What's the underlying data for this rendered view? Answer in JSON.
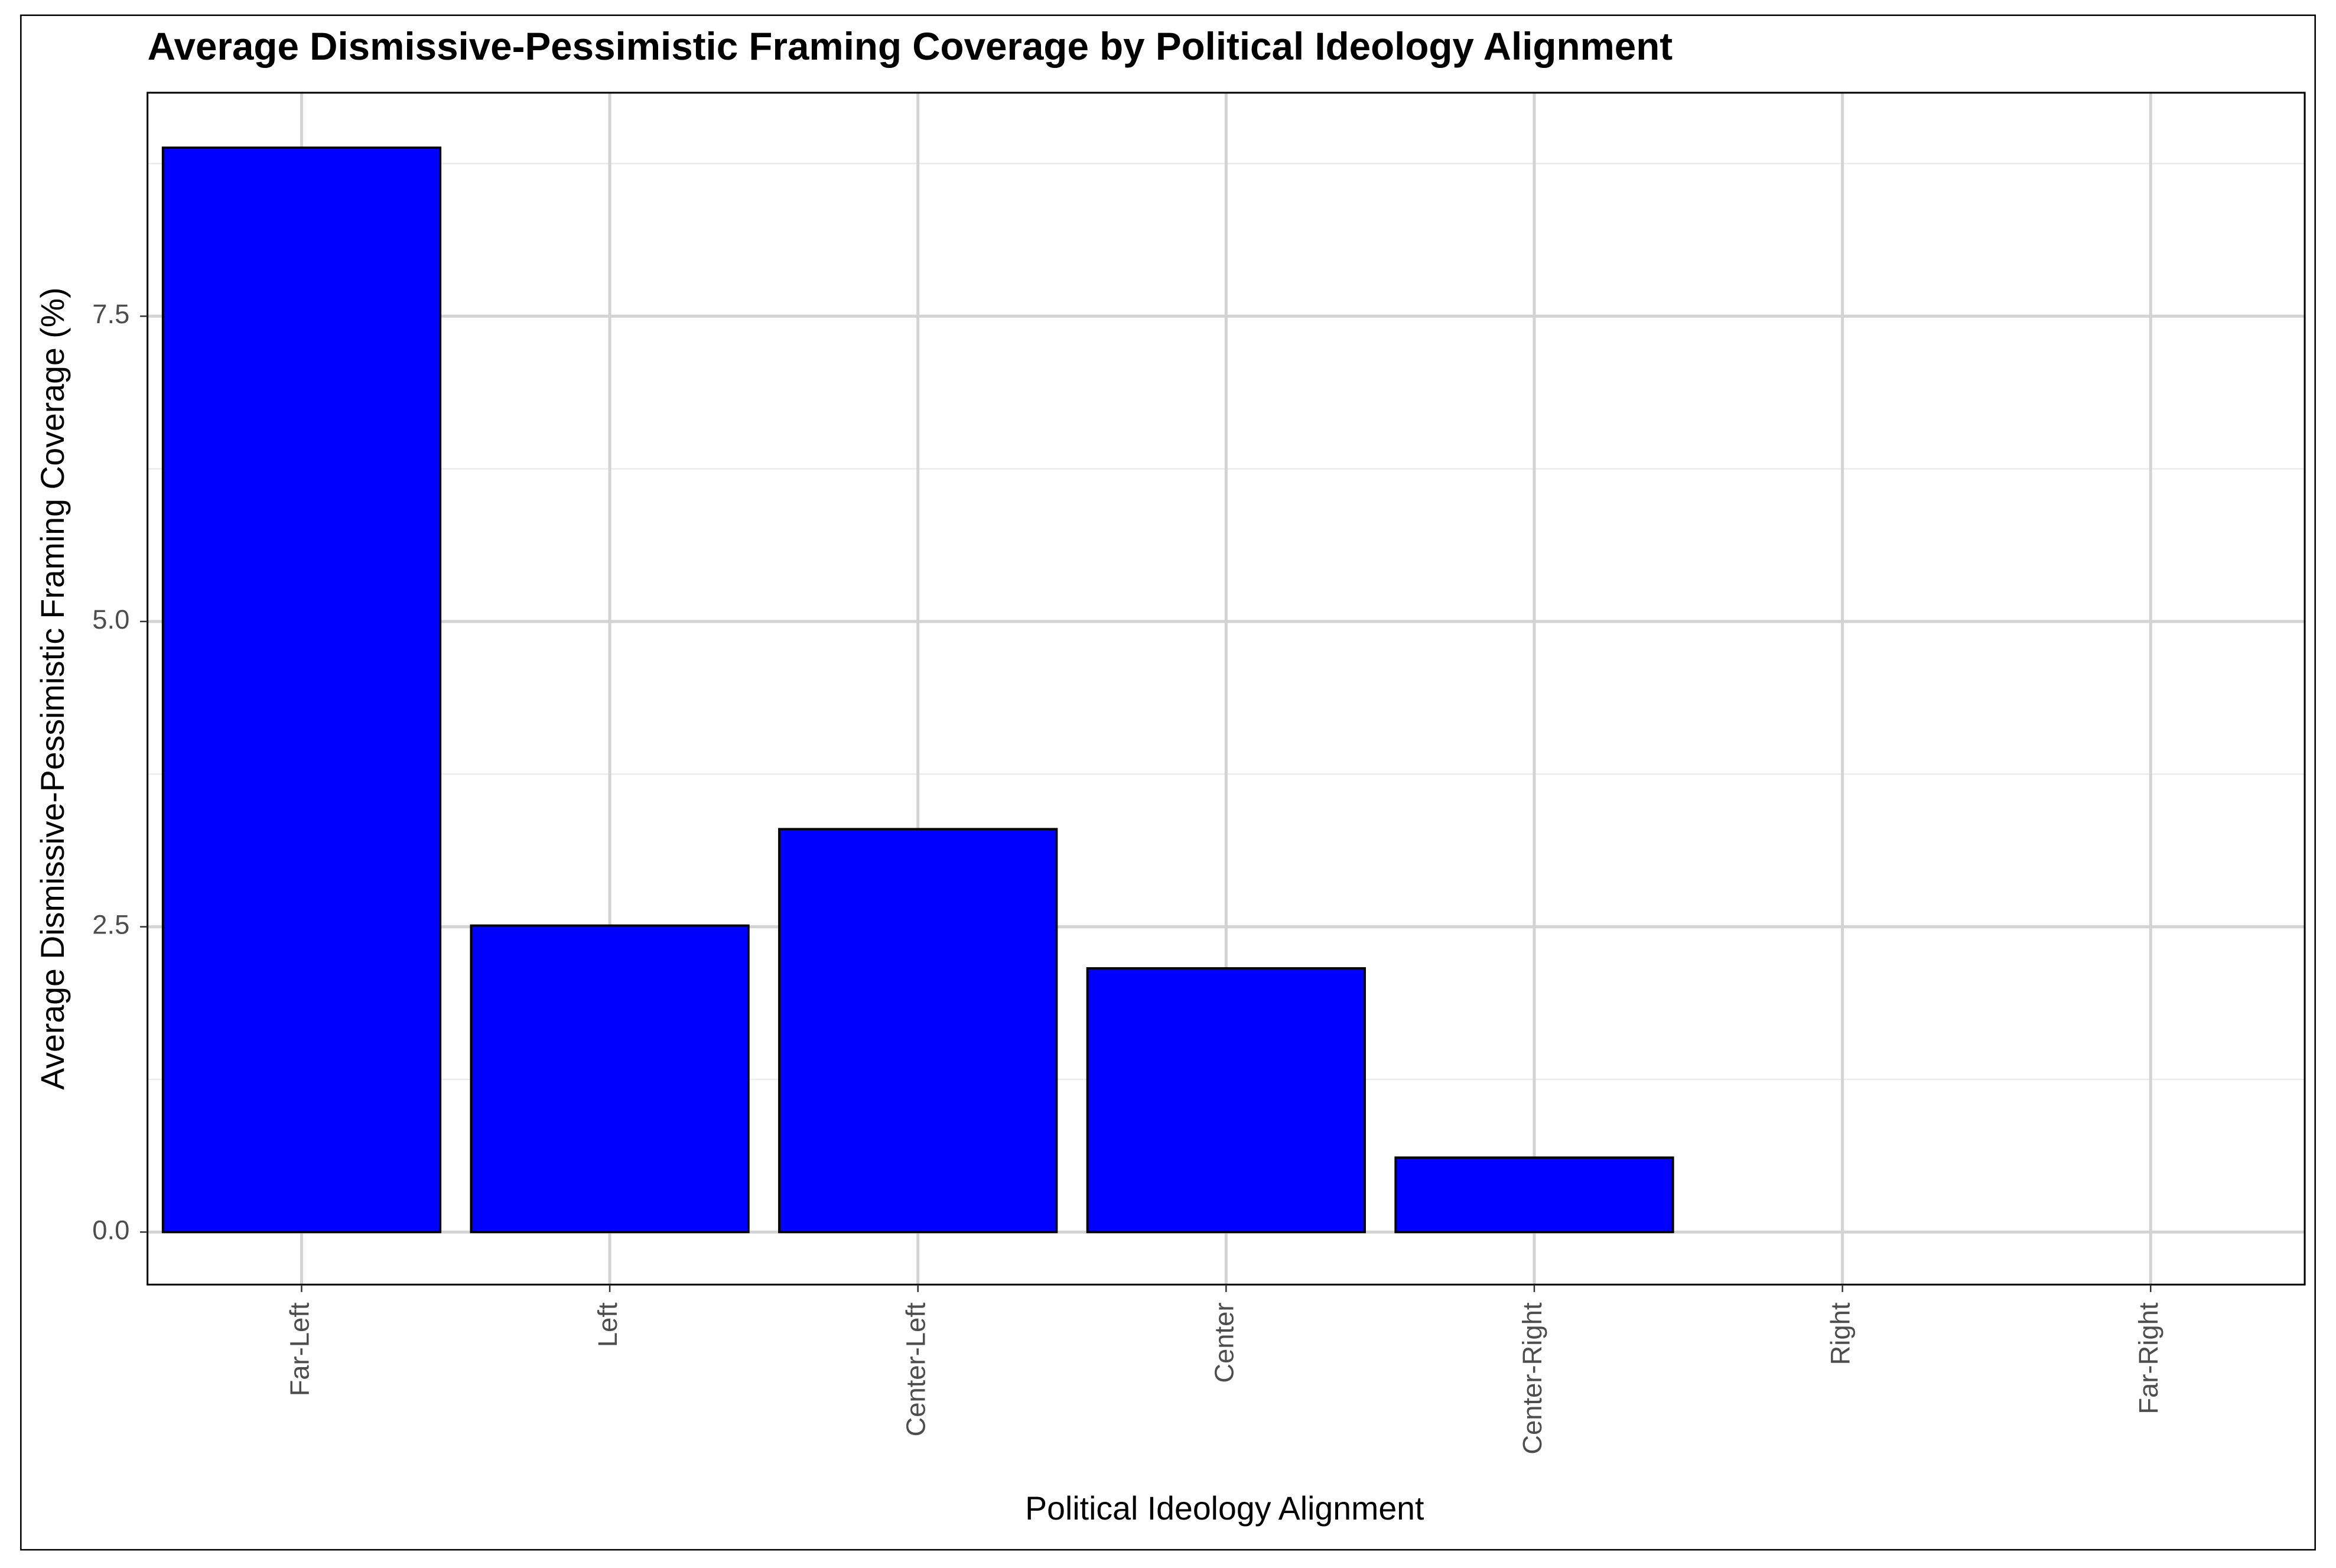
{
  "chart_data": {
    "type": "bar",
    "title": "Average Dismissive-Pessimistic Framing Coverage by Political Ideology Alignment",
    "x_label": "Political Ideology Alignment",
    "y_label": "Average Dismissive-Pessimistic Framing Coverage (%)",
    "categories": [
      "Far-Left",
      "Left",
      "Center-Left",
      "Center",
      "Center-Right",
      "Right",
      "Far-Right"
    ],
    "values": [
      8.88,
      2.51,
      3.3,
      2.16,
      0.61,
      0,
      0
    ],
    "color": "#0000ff",
    "ylim": [
      -0.43,
      9.33
    ],
    "yticks": [
      {
        "value": 0,
        "label": "0.0"
      },
      2.5,
      {
        "value": 5,
        "label": "5.0"
      },
      7.5
    ],
    "minor_yticks": [
      1.25,
      3.75,
      6.25,
      8.75
    ],
    "grid": true
  }
}
